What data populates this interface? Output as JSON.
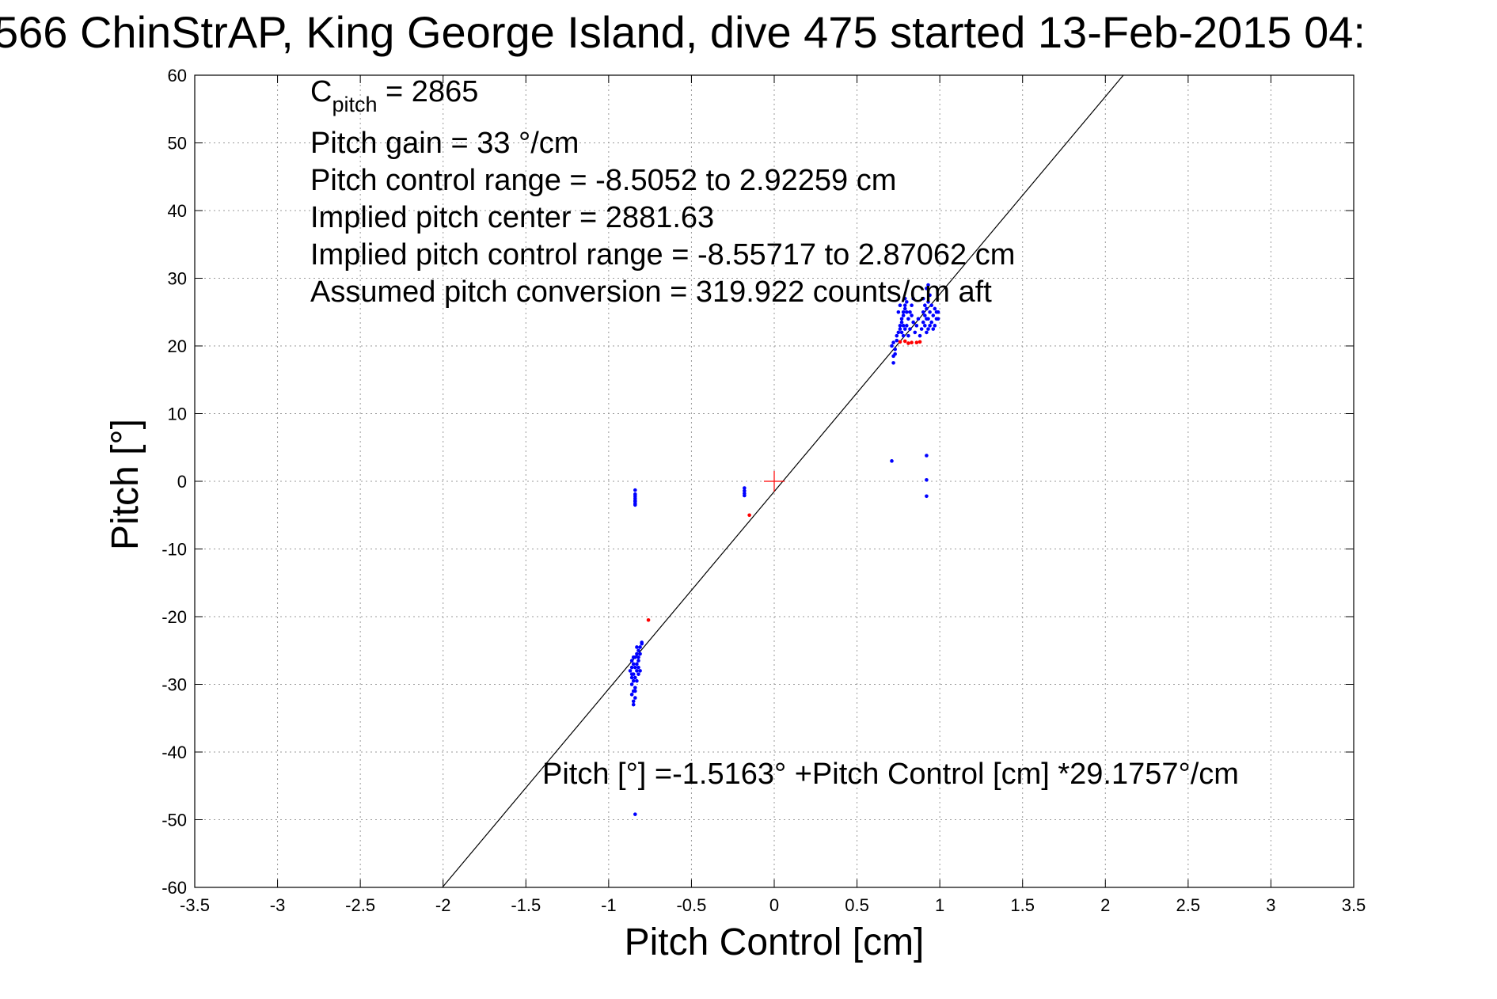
{
  "chart_data": {
    "type": "scatter",
    "title": "566 ChinStrAP, King George Island, dive 475 started 13-Feb-2015 04:",
    "xlabel": "Pitch Control [cm]",
    "ylabel": "Pitch [°]",
    "xlim": [
      -3.5,
      3.5
    ],
    "ylim": [
      -60,
      60
    ],
    "x_ticks": [
      -3.5,
      -3,
      -2.5,
      -2,
      -1.5,
      -1,
      -0.5,
      0,
      0.5,
      1,
      1.5,
      2,
      2.5,
      3,
      3.5
    ],
    "x_tick_labels": [
      "-3.5",
      "-3",
      "-2.5",
      "-2",
      "-1.5",
      "-1",
      "-0.5",
      "0",
      "0.5",
      "1",
      "1.5",
      "2",
      "2.5",
      "3",
      "3.5"
    ],
    "y_ticks": [
      -60,
      -50,
      -40,
      -30,
      -20,
      -10,
      0,
      10,
      20,
      30,
      40,
      50,
      60
    ],
    "y_tick_labels": [
      "-60",
      "-50",
      "-40",
      "-30",
      "-20",
      "-10",
      "0",
      "10",
      "20",
      "30",
      "40",
      "50",
      "60"
    ],
    "grid": true,
    "colors": {
      "series_blue": "#0000ff",
      "series_red": "#ff0000",
      "fit_line": "#000000",
      "grid": "#999999"
    },
    "annotations": {
      "c_pitch_prefix": "C",
      "c_pitch_sub": "pitch",
      "c_pitch_value": " = 2865",
      "pitch_gain": "Pitch gain = 33 °/cm",
      "control_range": "Pitch control range = -8.5052 to 2.92259 cm",
      "implied_center": "Implied pitch center = 2881.63",
      "implied_range": "Implied pitch control range = -8.55717 to 2.87062 cm",
      "assumed_conversion": "Assumed pitch conversion = 319.922 counts/cm aft",
      "fit_equation": "Pitch [°] =-1.5163° +Pitch Control [cm] *29.1757°/cm"
    },
    "fit_line": {
      "intercept": -1.5163,
      "slope": 29.1757
    },
    "center_marker": {
      "x": 0,
      "y": 0
    },
    "series": [
      {
        "color": "#0000ff",
        "points": [
          [
            -0.85,
            -33
          ],
          [
            -0.84,
            -32
          ],
          [
            -0.86,
            -31.5
          ],
          [
            -0.85,
            -31
          ],
          [
            -0.86,
            -30
          ],
          [
            -0.84,
            -30.5
          ],
          [
            -0.85,
            -29.5
          ],
          [
            -0.86,
            -29
          ],
          [
            -0.84,
            -29
          ],
          [
            -0.85,
            -28.5
          ],
          [
            -0.87,
            -28
          ],
          [
            -0.83,
            -28
          ],
          [
            -0.86,
            -27.5
          ],
          [
            -0.84,
            -27.5
          ],
          [
            -0.85,
            -27
          ],
          [
            -0.83,
            -27
          ],
          [
            -0.86,
            -26.5
          ],
          [
            -0.82,
            -26.5
          ],
          [
            -0.84,
            -26
          ],
          [
            -0.82,
            -26
          ],
          [
            -0.83,
            -25.5
          ],
          [
            -0.81,
            -25.5
          ],
          [
            -0.82,
            -25
          ],
          [
            -0.81,
            -24.5
          ],
          [
            -0.8,
            -24
          ],
          [
            -0.81,
            -28
          ],
          [
            -0.82,
            -27.5
          ],
          [
            -0.83,
            -29.5
          ],
          [
            -0.84,
            -31
          ],
          [
            -0.85,
            -32.5
          ],
          [
            -0.86,
            -28.5
          ],
          [
            -0.85,
            -26
          ],
          [
            -0.83,
            -24.5
          ],
          [
            -0.8,
            -23.8
          ],
          [
            -0.82,
            -28.5
          ],
          [
            -0.84,
            -1.3
          ],
          [
            -0.84,
            -1.9
          ],
          [
            -0.84,
            -2.5
          ],
          [
            -0.84,
            -3.0
          ],
          [
            -0.84,
            -3.5
          ],
          [
            -0.84,
            -2.2
          ],
          [
            -0.84,
            -2.8
          ],
          [
            -0.84,
            -3.3
          ],
          [
            -0.18,
            -1.0
          ],
          [
            -0.18,
            -1.4
          ],
          [
            -0.18,
            -1.8
          ],
          [
            -0.18,
            -2.1
          ],
          [
            -0.84,
            -49.2
          ],
          [
            0.71,
            3.0
          ],
          [
            0.92,
            3.8
          ],
          [
            0.92,
            0.2
          ],
          [
            0.92,
            -2.2
          ],
          [
            0.72,
            17.5
          ],
          [
            0.72,
            18.5
          ],
          [
            0.73,
            19.5
          ],
          [
            0.72,
            20.5
          ],
          [
            0.74,
            21.5
          ],
          [
            0.73,
            18.8
          ],
          [
            0.71,
            20.0
          ],
          [
            0.74,
            20.8
          ],
          [
            0.75,
            22
          ],
          [
            0.76,
            23
          ],
          [
            0.77,
            24
          ],
          [
            0.78,
            25
          ],
          [
            0.79,
            26
          ],
          [
            0.76,
            22.5
          ],
          [
            0.77,
            23.5
          ],
          [
            0.78,
            24.5
          ],
          [
            0.79,
            25.5
          ],
          [
            0.8,
            26.5
          ],
          [
            0.75,
            25
          ],
          [
            0.76,
            26
          ],
          [
            0.77,
            22
          ],
          [
            0.78,
            21.5
          ],
          [
            0.79,
            22.5
          ],
          [
            0.8,
            23
          ],
          [
            0.81,
            24
          ],
          [
            0.82,
            25
          ],
          [
            0.83,
            26
          ],
          [
            0.84,
            27
          ],
          [
            0.85,
            22
          ],
          [
            0.86,
            23
          ],
          [
            0.87,
            24
          ],
          [
            0.84,
            23.5
          ],
          [
            0.83,
            24.5
          ],
          [
            0.82,
            22.5
          ],
          [
            0.81,
            21.5
          ],
          [
            0.8,
            25
          ],
          [
            0.79,
            27
          ],
          [
            0.78,
            23
          ],
          [
            0.88,
            21.5
          ],
          [
            0.89,
            22.5
          ],
          [
            0.9,
            23.5
          ],
          [
            0.91,
            24.5
          ],
          [
            0.92,
            25.5
          ],
          [
            0.93,
            26.5
          ],
          [
            0.94,
            27.5
          ],
          [
            0.92,
            28.5
          ],
          [
            0.93,
            29.0
          ],
          [
            0.9,
            25
          ],
          [
            0.91,
            23
          ],
          [
            0.92,
            22
          ],
          [
            0.93,
            24
          ],
          [
            0.94,
            25
          ],
          [
            0.95,
            23.5
          ],
          [
            0.96,
            24.5
          ],
          [
            0.97,
            23
          ],
          [
            0.98,
            24
          ],
          [
            0.99,
            25
          ],
          [
            0.95,
            26
          ],
          [
            0.96,
            22.5
          ],
          [
            0.97,
            25.5
          ],
          [
            0.94,
            23
          ],
          [
            0.93,
            22.5
          ],
          [
            0.99,
            24
          ],
          [
            0.98,
            25
          ],
          [
            0.91,
            26
          ],
          [
            0.92,
            24
          ],
          [
            0.9,
            27
          ]
        ]
      },
      {
        "color": "#ff0000",
        "points": [
          [
            -0.76,
            -20.5
          ],
          [
            -0.15,
            -5.0
          ],
          [
            0.76,
            20.6
          ],
          [
            0.79,
            20.7
          ],
          [
            0.83,
            20.5
          ],
          [
            0.86,
            20.5
          ],
          [
            0.88,
            20.6
          ],
          [
            0.81,
            20.4
          ]
        ]
      }
    ]
  }
}
